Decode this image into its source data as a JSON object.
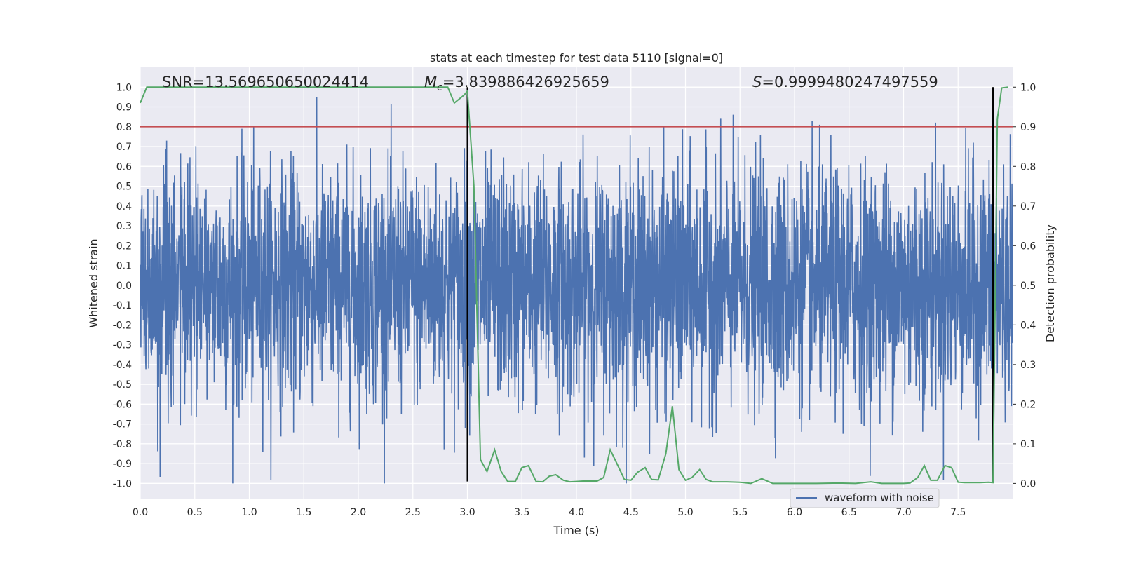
{
  "chart_data": {
    "type": "line",
    "title": "stats at each timestep for test data 5110 [signal=0]",
    "xlabel": "Time (s)",
    "ylabel": "Whitened strain",
    "y2label": "Detection probability",
    "xlim": [
      0,
      8.0
    ],
    "ylim": [
      -1.08,
      1.1
    ],
    "y2lim": [
      -0.04,
      1.05
    ],
    "xticks": [
      "0.0",
      "0.5",
      "1.0",
      "1.5",
      "2.0",
      "2.5",
      "3.0",
      "3.5",
      "4.0",
      "4.5",
      "5.0",
      "5.5",
      "6.0",
      "6.5",
      "7.0",
      "7.5"
    ],
    "yticks": [
      "1.0",
      "0.9",
      "0.8",
      "0.7",
      "0.6",
      "0.5",
      "0.4",
      "0.3",
      "0.2",
      "0.1",
      "0.0",
      "-0.1",
      "-0.2",
      "-0.3",
      "-0.4",
      "-0.5",
      "-0.6",
      "-0.7",
      "-0.8",
      "-0.9",
      "-1.0"
    ],
    "y2ticks": [
      "1.0",
      "0.9",
      "0.8",
      "0.7",
      "0.6",
      "0.5",
      "0.4",
      "0.3",
      "0.2",
      "0.1",
      "0.0"
    ],
    "grid": true,
    "legend": {
      "position": "lower-right",
      "entries": [
        "waveform with noise"
      ]
    },
    "annotations": {
      "snr": "SNR=13.569650650024414",
      "mc_prefix": "M",
      "mc_sub": "c",
      "mc_value": "=3.839886426925659",
      "s_prefix": "S",
      "s_value": "=0.9999480247497559"
    },
    "threshold": {
      "value": 0.9,
      "axis": "y2",
      "color": "#c44e52"
    },
    "vlines": [
      3.0,
      7.82
    ],
    "waveform": {
      "name": "waveform with noise",
      "color": "#4c72b0",
      "x_range": [
        0,
        8.0
      ],
      "sample_count": 4000,
      "amplitude_max": 1.0
    },
    "probability": {
      "color": "#55a868",
      "x": [
        0,
        0.06,
        0.15,
        0.5,
        1.0,
        1.5,
        2.0,
        2.5,
        2.82,
        2.88,
        2.97,
        3.0,
        3.06,
        3.12,
        3.18,
        3.25,
        3.31,
        3.37,
        3.44,
        3.5,
        3.56,
        3.63,
        3.69,
        3.75,
        3.81,
        3.88,
        3.94,
        4.0,
        4.06,
        4.13,
        4.19,
        4.25,
        4.31,
        4.38,
        4.44,
        4.5,
        4.56,
        4.63,
        4.69,
        4.75,
        4.82,
        4.88,
        4.94,
        5.0,
        5.06,
        5.13,
        5.19,
        5.25,
        5.31,
        5.38,
        5.5,
        5.6,
        5.7,
        5.8,
        6.0,
        6.2,
        6.4,
        6.56,
        6.7,
        6.8,
        7.0,
        7.06,
        7.13,
        7.19,
        7.25,
        7.31,
        7.38,
        7.44,
        7.5,
        7.56,
        7.7,
        7.78,
        7.82,
        7.86,
        7.9,
        7.96
      ],
      "values": [
        0.96,
        1.0,
        1.0,
        1.0,
        1.0,
        1.0,
        1.0,
        1.0,
        1.0,
        0.96,
        0.98,
        0.99,
        0.75,
        0.06,
        0.03,
        0.085,
        0.03,
        0.005,
        0.005,
        0.04,
        0.045,
        0.005,
        0.004,
        0.018,
        0.022,
        0.008,
        0.004,
        0.005,
        0.006,
        0.006,
        0.006,
        0.015,
        0.085,
        0.045,
        0.01,
        0.008,
        0.028,
        0.04,
        0.01,
        0.009,
        0.075,
        0.195,
        0.035,
        0.008,
        0.015,
        0.035,
        0.01,
        0.004,
        0.004,
        0.004,
        0.003,
        0.0,
        0.012,
        0.0,
        0.0,
        0.0,
        0.001,
        0.0,
        0.004,
        0.0,
        0.0,
        0.001,
        0.015,
        0.045,
        0.008,
        0.008,
        0.045,
        0.04,
        0.003,
        0.002,
        0.002,
        0.003,
        0.002,
        0.92,
        0.998,
        1.0
      ]
    }
  }
}
